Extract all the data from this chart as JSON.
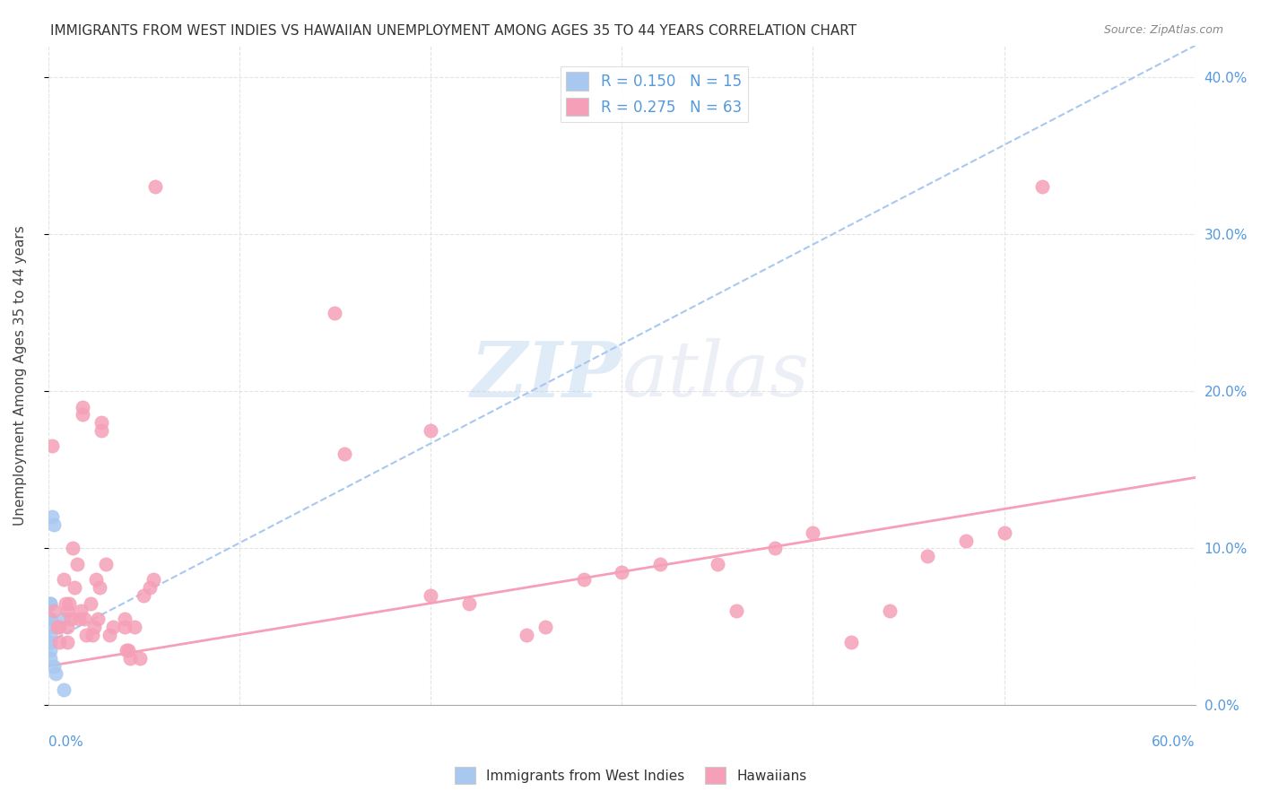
{
  "title": "IMMIGRANTS FROM WEST INDIES VS HAWAIIAN UNEMPLOYMENT AMONG AGES 35 TO 44 YEARS CORRELATION CHART",
  "source": "Source: ZipAtlas.com",
  "ylabel": "Unemployment Among Ages 35 to 44 years",
  "ylabel_right_ticks": [
    "0.0%",
    "10.0%",
    "20.0%",
    "30.0%",
    "40.0%"
  ],
  "legend1_r": "R = 0.150",
  "legend1_n": "N = 15",
  "legend2_r": "R = 0.275",
  "legend2_n": "N = 63",
  "legend_bottom1": "Immigrants from West Indies",
  "legend_bottom2": "Hawaiians",
  "color_blue": "#a8c8f0",
  "color_pink": "#f5a0b8",
  "color_blue_text": "#5599dd",
  "xlim": [
    0.0,
    0.6
  ],
  "ylim": [
    0.0,
    0.42
  ],
  "watermark_zip": "ZIP",
  "watermark_atlas": "atlas",
  "blue_scatter_x": [
    0.001,
    0.001,
    0.001,
    0.001,
    0.001,
    0.001,
    0.001,
    0.001,
    0.001,
    0.002,
    0.003,
    0.003,
    0.004,
    0.008,
    0.008
  ],
  "blue_scatter_y": [
    0.065,
    0.065,
    0.055,
    0.055,
    0.05,
    0.045,
    0.04,
    0.035,
    0.03,
    0.12,
    0.115,
    0.025,
    0.02,
    0.055,
    0.01
  ],
  "pink_scatter_x": [
    0.002,
    0.003,
    0.005,
    0.006,
    0.006,
    0.008,
    0.009,
    0.01,
    0.01,
    0.01,
    0.011,
    0.012,
    0.013,
    0.014,
    0.015,
    0.016,
    0.017,
    0.018,
    0.018,
    0.019,
    0.02,
    0.022,
    0.023,
    0.024,
    0.025,
    0.026,
    0.027,
    0.028,
    0.028,
    0.03,
    0.032,
    0.034,
    0.04,
    0.04,
    0.041,
    0.042,
    0.043,
    0.045,
    0.048,
    0.05,
    0.053,
    0.055,
    0.056,
    0.15,
    0.155,
    0.2,
    0.2,
    0.22,
    0.25,
    0.26,
    0.28,
    0.3,
    0.32,
    0.35,
    0.36,
    0.38,
    0.4,
    0.42,
    0.44,
    0.46,
    0.48,
    0.5,
    0.52
  ],
  "pink_scatter_y": [
    0.165,
    0.06,
    0.05,
    0.05,
    0.04,
    0.08,
    0.065,
    0.06,
    0.05,
    0.04,
    0.065,
    0.055,
    0.1,
    0.075,
    0.09,
    0.055,
    0.06,
    0.19,
    0.185,
    0.055,
    0.045,
    0.065,
    0.045,
    0.05,
    0.08,
    0.055,
    0.075,
    0.18,
    0.175,
    0.09,
    0.045,
    0.05,
    0.05,
    0.055,
    0.035,
    0.035,
    0.03,
    0.05,
    0.03,
    0.07,
    0.075,
    0.08,
    0.33,
    0.25,
    0.16,
    0.175,
    0.07,
    0.065,
    0.045,
    0.05,
    0.08,
    0.085,
    0.09,
    0.09,
    0.06,
    0.1,
    0.11,
    0.04,
    0.06,
    0.095,
    0.105,
    0.11,
    0.33
  ],
  "blue_trend_y_start": 0.04,
  "blue_trend_y_end": 0.42,
  "pink_trend_y_start": 0.025,
  "pink_trend_y_end": 0.145
}
